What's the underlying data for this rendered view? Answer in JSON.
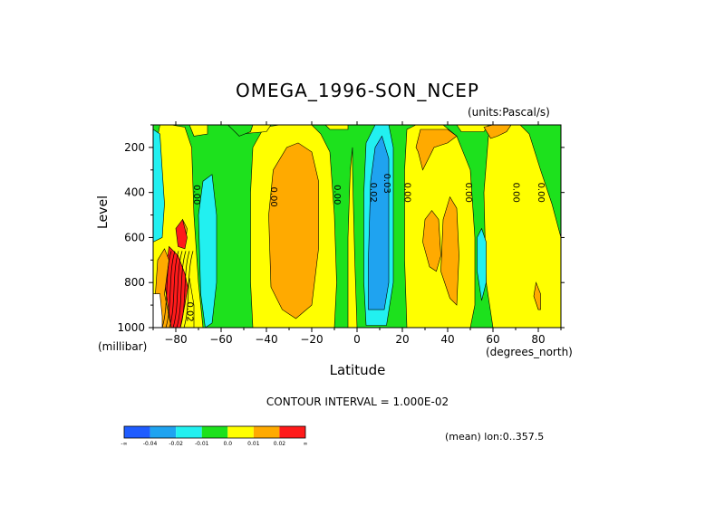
{
  "title": "OMEGA_1996-SON_NCEP",
  "units": "(units:Pascal/s)",
  "footer": {
    "contour_interval": "CONTOUR INTERVAL = 1.000E-02",
    "mean_note": "(mean) lon:0..357.5"
  },
  "colors": {
    "lt_neg04": "#1f5cff",
    "neg04_neg02": "#1fa3f0",
    "neg02_neg01": "#22f0f0",
    "neg01_0": "#1de11d",
    "0_01": "#ffff00",
    "01_02": "#ffaa00",
    "gt_02": "#ff1a1a"
  },
  "chart_data": {
    "type": "heatmap",
    "variable": "OMEGA",
    "title": "OMEGA_1996-SON_NCEP",
    "xlabel": "Latitude",
    "x_unit_label": "(degrees_north)",
    "ylabel": "Level",
    "y_unit_label": "(millibar)",
    "xlim": [
      -90,
      90
    ],
    "ylim": [
      1000,
      100
    ],
    "x_ticks": [
      -80,
      -60,
      -40,
      -20,
      0,
      20,
      40,
      60,
      80
    ],
    "y_ticks": [
      200,
      400,
      600,
      800,
      1000
    ],
    "contour_interval": 0.01,
    "colorbar": {
      "levels": [
        -0.04,
        -0.02,
        -0.01,
        0.0,
        0.01,
        0.02
      ],
      "labels": [
        "-∞",
        "-0.04",
        "-0.02",
        "-0.01",
        "0.0",
        "0.01",
        "0.02",
        "∞"
      ],
      "colors": [
        "#1f5cff",
        "#1fa3f0",
        "#22f0f0",
        "#1de11d",
        "#ffff00",
        "#ffaa00",
        "#ff1a1a"
      ]
    },
    "contour_labels": [
      {
        "text": "0.00",
        "lat": -72,
        "level": 410
      },
      {
        "text": "0.00",
        "lat": -38,
        "level": 420
      },
      {
        "text": "0.00",
        "lat": -10,
        "level": 410
      },
      {
        "text": "0.02",
        "lat": 6,
        "level": 400
      },
      {
        "text": "0.03",
        "lat": 12,
        "level": 360
      },
      {
        "text": "0.00",
        "lat": 21,
        "level": 400
      },
      {
        "text": "0.00",
        "lat": 48,
        "level": 400
      },
      {
        "text": "0.00",
        "lat": 69,
        "level": 400
      },
      {
        "text": "0.00",
        "lat": 80,
        "level": 400
      },
      {
        "text": "0.02",
        "lat": -75,
        "level": 930
      }
    ],
    "features": [
      {
        "sign": "positive",
        "center_lat": -28,
        "level_range": [
          200,
          950
        ],
        "max": 0.02
      },
      {
        "sign": "negative",
        "center_lat": 10,
        "level_range": [
          100,
          950
        ],
        "min": -0.03
      },
      {
        "sign": "positive",
        "center_lat": 36,
        "level_range": [
          100,
          900
        ],
        "max": 0.02
      },
      {
        "sign": "negative",
        "center_lat": -66,
        "level_range": [
          300,
          1000
        ],
        "min": -0.02
      },
      {
        "sign": "positive",
        "center_lat": -74,
        "level_range": [
          600,
          1000
        ],
        "max": 0.03
      }
    ]
  }
}
